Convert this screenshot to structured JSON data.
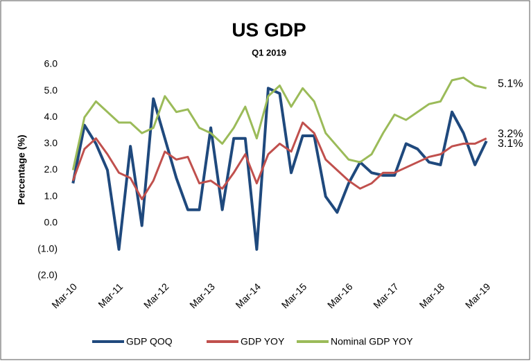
{
  "chart_data": {
    "type": "line",
    "title": "US GDP",
    "subtitle": "Q1 2019",
    "y_label": "Percentage (%)",
    "categories": [
      "Mar-10",
      null,
      null,
      null,
      "Mar-11",
      null,
      null,
      null,
      "Mar-12",
      null,
      null,
      null,
      "Mar-13",
      null,
      null,
      null,
      "Mar-14",
      null,
      null,
      null,
      "Mar-15",
      null,
      null,
      null,
      "Mar-16",
      null,
      null,
      null,
      "Mar-17",
      null,
      null,
      null,
      "Mar-18",
      null,
      null,
      null,
      "Mar-19"
    ],
    "series": [
      {
        "name": "GDP QOQ",
        "color": "#1f497d",
        "end_label": "3.1%",
        "values": [
          1.5,
          3.7,
          3.0,
          2.0,
          -1.0,
          2.9,
          -0.1,
          4.7,
          3.2,
          1.7,
          0.5,
          0.5,
          3.6,
          0.5,
          3.2,
          3.2,
          -1.0,
          5.1,
          4.9,
          1.9,
          3.3,
          3.3,
          1.0,
          0.4,
          1.5,
          2.3,
          1.9,
          1.8,
          1.8,
          3.0,
          2.8,
          2.3,
          2.2,
          4.2,
          3.4,
          2.2,
          3.1
        ]
      },
      {
        "name": "GDP YOY",
        "color": "#c0504d",
        "end_label": "3.2%",
        "values": [
          1.6,
          2.8,
          3.2,
          2.6,
          1.9,
          1.7,
          0.9,
          1.6,
          2.7,
          2.4,
          2.5,
          1.5,
          1.6,
          1.3,
          1.9,
          2.6,
          1.5,
          2.6,
          3.0,
          2.7,
          3.8,
          3.4,
          2.4,
          2.0,
          1.6,
          1.3,
          1.5,
          1.9,
          1.9,
          2.1,
          2.3,
          2.5,
          2.6,
          2.9,
          3.0,
          3.0,
          3.2
        ]
      },
      {
        "name": "Nominal GDP YOY",
        "color": "#9bbb59",
        "end_label": "5.1%",
        "values": [
          2.0,
          4.0,
          4.6,
          4.2,
          3.8,
          3.8,
          3.4,
          3.6,
          4.8,
          4.2,
          4.3,
          3.6,
          3.4,
          3.0,
          3.6,
          4.4,
          3.2,
          4.8,
          5.2,
          4.4,
          5.1,
          4.6,
          3.4,
          2.9,
          2.4,
          2.3,
          2.6,
          3.4,
          4.1,
          3.9,
          4.2,
          4.5,
          4.6,
          5.4,
          5.5,
          5.2,
          5.1
        ]
      }
    ],
    "ylim": [
      -2,
      6
    ],
    "yticks": [
      {
        "value": -2,
        "label": "(2.0)"
      },
      {
        "value": -1,
        "label": "(1.0)"
      },
      {
        "value": 0,
        "label": "0.0"
      },
      {
        "value": 1,
        "label": "1.0"
      },
      {
        "value": 2,
        "label": "2.0"
      },
      {
        "value": 3,
        "label": "3.0"
      },
      {
        "value": 4,
        "label": "4.0"
      },
      {
        "value": 5,
        "label": "5.0"
      },
      {
        "value": 6,
        "label": "6.0"
      }
    ],
    "grid": false,
    "legend": "bottom"
  }
}
